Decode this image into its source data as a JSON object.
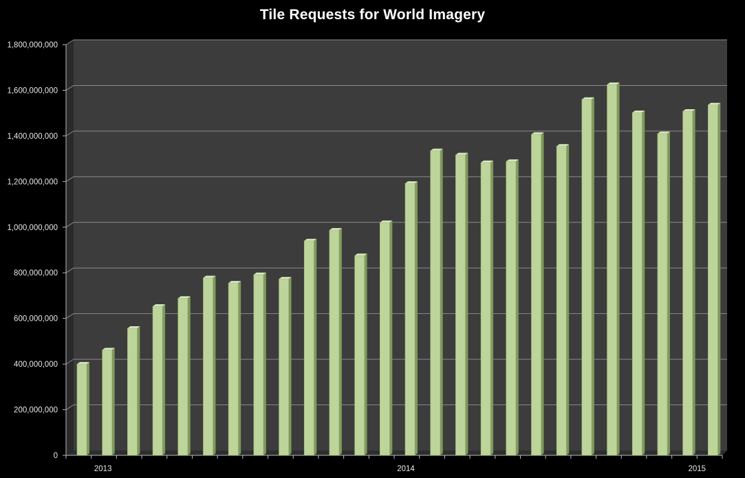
{
  "chart_data": {
    "type": "bar",
    "title": "Tile Requests for World Imagery",
    "xlabel": "",
    "ylabel": "",
    "ylim": [
      0,
      1800000000
    ],
    "y_ticks": [
      0,
      200000000,
      400000000,
      600000000,
      800000000,
      1000000000,
      1200000000,
      1400000000,
      1600000000,
      1800000000
    ],
    "y_tick_labels": [
      "0",
      "200,000,000",
      "400,000,000",
      "600,000,000",
      "800,000,000",
      "1,000,000,000",
      "1,200,000,000",
      "1,400,000,000",
      "1,600,000,000",
      "1,800,000,000"
    ],
    "year_labels": [
      {
        "label": "2013",
        "index": 1
      },
      {
        "label": "2014",
        "index": 13
      },
      {
        "label": "2015",
        "index": 25
      }
    ],
    "grid": true,
    "legend": "none",
    "colors": {
      "background": "#000000",
      "plot_area": "#3c3c3c",
      "gridline": "#8a8a8a",
      "bar_front": "#bdd49a",
      "bar_top": "#d9e8c0",
      "bar_side": "#7e9a5c"
    },
    "values": [
      400000000,
      462000000,
      557000000,
      653000000,
      688000000,
      778000000,
      755000000,
      792000000,
      773000000,
      940000000,
      987000000,
      875000000,
      1020000000,
      1192000000,
      1335000000,
      1317000000,
      1283000000,
      1288000000,
      1407000000,
      1355000000,
      1560000000,
      1625000000,
      1502000000,
      1410000000,
      1508000000,
      1536000000
    ]
  }
}
